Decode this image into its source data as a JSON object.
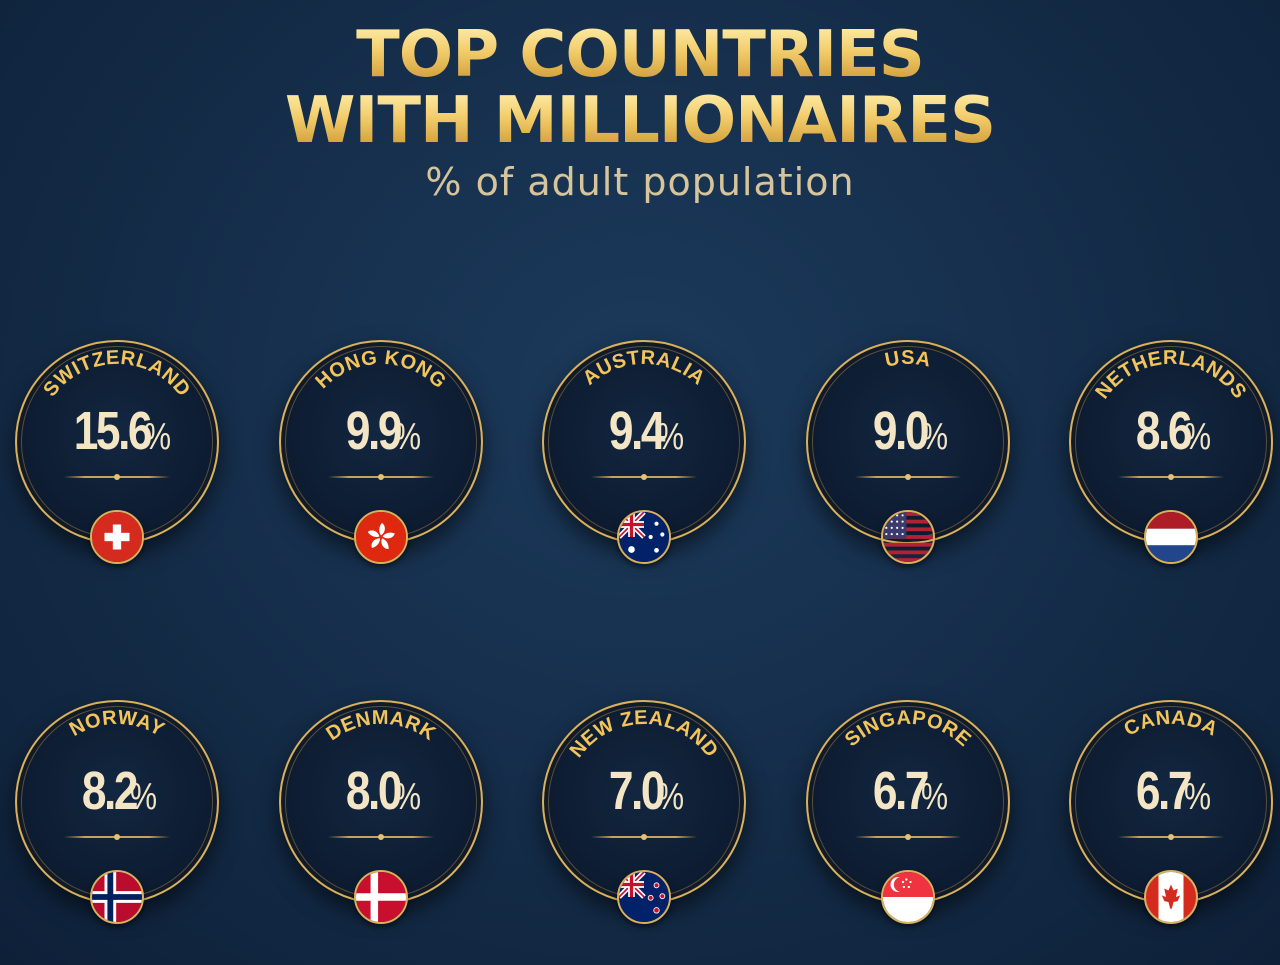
{
  "header": {
    "title_line1": "TOP COUNTRIES",
    "title_line2": "WITH MILLIONAIRES",
    "subtitle": "% of adult population"
  },
  "colors": {
    "gold": "#f2c45a",
    "background": "#142c48",
    "value_text": "#f4e6c4"
  },
  "chart_data": {
    "type": "table",
    "title": "TOP COUNTRIES WITH MILLIONAIRES",
    "subtitle": "% of adult population",
    "unit": "%",
    "categories": [
      "SWITZERLAND",
      "HONG KONG",
      "AUSTRALIA",
      "USA",
      "NETHERLANDS",
      "NORWAY",
      "DENMARK",
      "NEW ZEALAND",
      "SINGAPORE",
      "CANADA"
    ],
    "values": [
      15.6,
      9.9,
      9.4,
      9.0,
      8.6,
      8.2,
      8.0,
      7.0,
      6.7,
      6.7
    ]
  },
  "countries": [
    {
      "name": "SWITZERLAND",
      "value": "15.6",
      "unit": "%",
      "flag": "switzerland-flag-icon"
    },
    {
      "name": "HONG KONG",
      "value": "9.9",
      "unit": "%",
      "flag": "hong-kong-flag-icon"
    },
    {
      "name": "AUSTRALIA",
      "value": "9.4",
      "unit": "%",
      "flag": "australia-flag-icon"
    },
    {
      "name": "USA",
      "value": "9.0",
      "unit": "%",
      "flag": "usa-flag-icon"
    },
    {
      "name": "NETHERLANDS",
      "value": "8.6",
      "unit": "%",
      "flag": "netherlands-flag-icon"
    },
    {
      "name": "NORWAY",
      "value": "8.2",
      "unit": "%",
      "flag": "norway-flag-icon"
    },
    {
      "name": "DENMARK",
      "value": "8.0",
      "unit": "%",
      "flag": "denmark-flag-icon"
    },
    {
      "name": "NEW ZEALAND",
      "value": "7.0",
      "unit": "%",
      "flag": "new-zealand-flag-icon"
    },
    {
      "name": "SINGAPORE",
      "value": "6.7",
      "unit": "%",
      "flag": "singapore-flag-icon"
    },
    {
      "name": "CANADA",
      "value": "6.7",
      "unit": "%",
      "flag": "canada-flag-icon"
    }
  ]
}
